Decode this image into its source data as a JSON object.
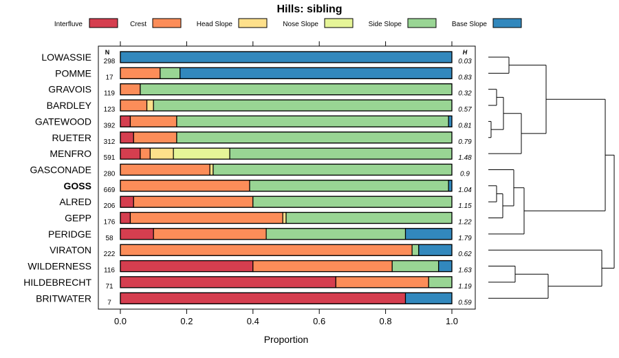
{
  "chart_data": {
    "type": "stacked-bar-horizontal",
    "title": "Hills: sibling",
    "xlabel": "Proportion",
    "xlim": [
      0,
      1
    ],
    "xticks": [
      "0.0",
      "0.2",
      "0.4",
      "0.6",
      "0.8",
      "1.0"
    ],
    "n_header": "N",
    "h_header": "H",
    "series": [
      {
        "name": "Interfluve",
        "color": "#d53e4f"
      },
      {
        "name": "Crest",
        "color": "#fc8d59"
      },
      {
        "name": "Head Slope",
        "color": "#fee08b"
      },
      {
        "name": "Nose Slope",
        "color": "#e6f598"
      },
      {
        "name": "Side Slope",
        "color": "#99d594"
      },
      {
        "name": "Base Slope",
        "color": "#3288bd"
      }
    ],
    "rows": [
      {
        "label": "LOWASSIE",
        "bold": false,
        "n": "298",
        "h": "0.03",
        "values": [
          0.0,
          0.0,
          0.0,
          0.0,
          0.0,
          1.0
        ]
      },
      {
        "label": "POMME",
        "bold": false,
        "n": "17",
        "h": "0.83",
        "values": [
          0.0,
          0.12,
          0.0,
          0.0,
          0.06,
          0.82
        ]
      },
      {
        "label": "GRAVOIS",
        "bold": false,
        "n": "119",
        "h": "0.32",
        "values": [
          0.0,
          0.06,
          0.0,
          0.0,
          0.94,
          0.0
        ]
      },
      {
        "label": "BARDLEY",
        "bold": false,
        "n": "123",
        "h": "0.57",
        "values": [
          0.0,
          0.08,
          0.02,
          0.0,
          0.9,
          0.0
        ]
      },
      {
        "label": "GATEWOOD",
        "bold": false,
        "n": "392",
        "h": "0.81",
        "values": [
          0.03,
          0.14,
          0.0,
          0.0,
          0.82,
          0.01
        ]
      },
      {
        "label": "RUETER",
        "bold": false,
        "n": "312",
        "h": "0.79",
        "values": [
          0.04,
          0.13,
          0.0,
          0.0,
          0.83,
          0.0
        ]
      },
      {
        "label": "MENFRO",
        "bold": false,
        "n": "591",
        "h": "1.48",
        "values": [
          0.06,
          0.03,
          0.07,
          0.17,
          0.67,
          0.0
        ]
      },
      {
        "label": "GASCONADE",
        "bold": false,
        "n": "280",
        "h": "0.9",
        "values": [
          0.0,
          0.27,
          0.01,
          0.0,
          0.72,
          0.0
        ]
      },
      {
        "label": "GOSS",
        "bold": true,
        "n": "669",
        "h": "1.04",
        "values": [
          0.0,
          0.39,
          0.0,
          0.0,
          0.6,
          0.01
        ]
      },
      {
        "label": "ALRED",
        "bold": false,
        "n": "206",
        "h": "1.15",
        "values": [
          0.04,
          0.36,
          0.0,
          0.0,
          0.6,
          0.0
        ]
      },
      {
        "label": "GEPP",
        "bold": false,
        "n": "176",
        "h": "1.22",
        "values": [
          0.03,
          0.46,
          0.01,
          0.0,
          0.5,
          0.0
        ]
      },
      {
        "label": "PERIDGE",
        "bold": false,
        "n": "58",
        "h": "1.79",
        "values": [
          0.1,
          0.34,
          0.0,
          0.0,
          0.42,
          0.14
        ]
      },
      {
        "label": "VIRATON",
        "bold": false,
        "n": "222",
        "h": "0.62",
        "values": [
          0.0,
          0.88,
          0.0,
          0.0,
          0.02,
          0.1
        ]
      },
      {
        "label": "WILDERNESS",
        "bold": false,
        "n": "116",
        "h": "1.63",
        "values": [
          0.4,
          0.42,
          0.0,
          0.0,
          0.14,
          0.04
        ]
      },
      {
        "label": "HILDEBRECHT",
        "bold": false,
        "n": "71",
        "h": "1.19",
        "values": [
          0.65,
          0.28,
          0.0,
          0.0,
          0.07,
          0.0
        ]
      },
      {
        "label": "BRITWATER",
        "bold": false,
        "n": "7",
        "h": "0.59",
        "values": [
          0.86,
          0.0,
          0.0,
          0.0,
          0.0,
          0.14
        ]
      }
    ]
  }
}
